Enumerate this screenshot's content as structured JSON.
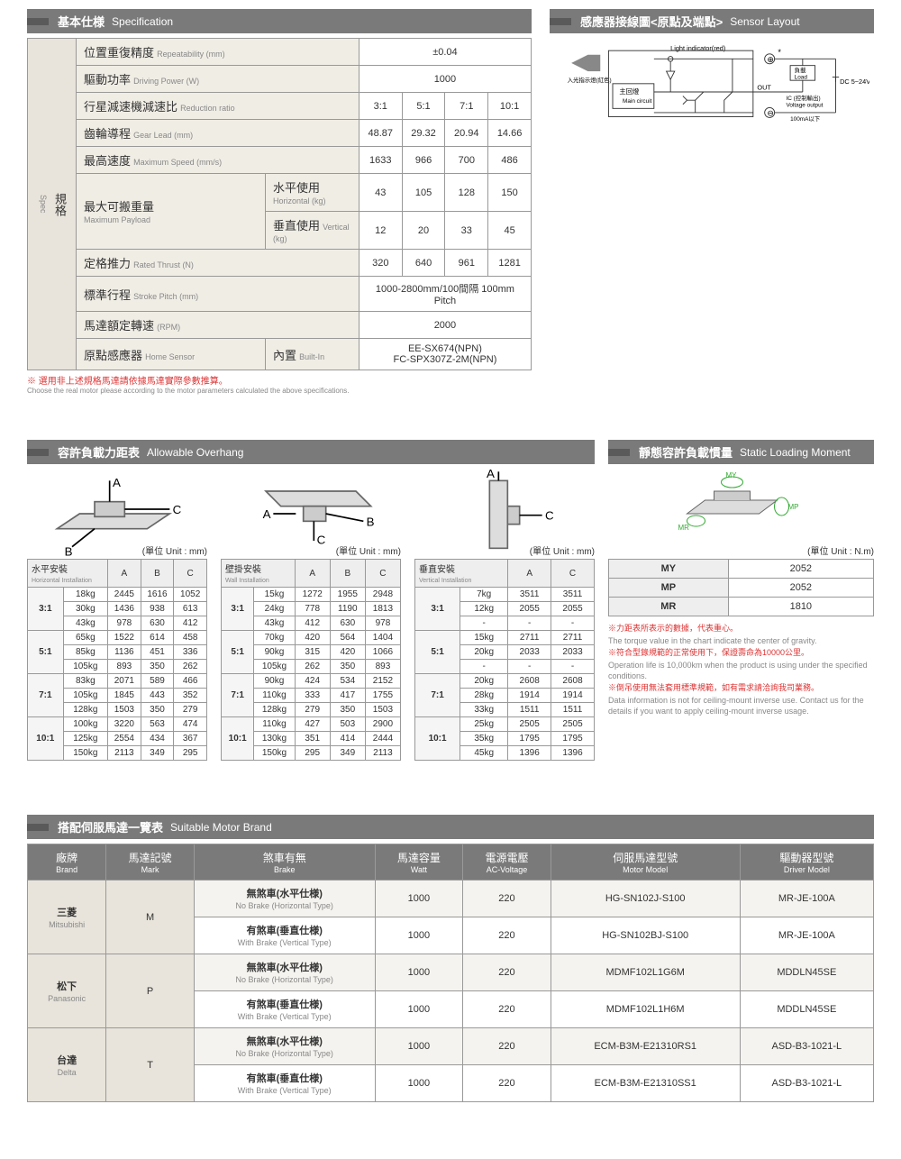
{
  "headers": {
    "spec": {
      "cn": "基本仕様",
      "en": "Specification"
    },
    "sensor": {
      "cn": "感應器接線圖<原點及端點>",
      "en": "Sensor Layout"
    },
    "overhang": {
      "cn": "容許負載力距表",
      "en": "Allowable Overhang"
    },
    "static": {
      "cn": "靜態容許負載慣量",
      "en": "Static Loading Moment"
    },
    "motor": {
      "cn": "搭配伺服馬達一覽表",
      "en": "Suitable Motor Brand"
    }
  },
  "spec": {
    "vert_cn": "規格",
    "vert_en": "Spec",
    "rows": {
      "repeat": {
        "cn": "位置重復精度",
        "en": "Repeatability (mm)",
        "val": "±0.04"
      },
      "power": {
        "cn": "驅動功率",
        "en": "Driving Power (W)",
        "val": "1000"
      },
      "ratio": {
        "cn": "行星減速機減速比",
        "en": "Reduction ratio",
        "vals": [
          "3:1",
          "5:1",
          "7:1",
          "10:1"
        ]
      },
      "lead": {
        "cn": "齒輪導程",
        "en": "Gear Lead (mm)",
        "vals": [
          "48.87",
          "29.32",
          "20.94",
          "14.66"
        ]
      },
      "speed": {
        "cn": "最高速度",
        "en": "Maximum Speed (mm/s)",
        "vals": [
          "1633",
          "966",
          "700",
          "486"
        ]
      },
      "payload": {
        "cn": "最大可搬重量",
        "en": "Maximum Payload"
      },
      "horiz": {
        "cn": "水平使用",
        "en": "Horizontal (kg)",
        "vals": [
          "43",
          "105",
          "128",
          "150"
        ]
      },
      "vert": {
        "cn": "垂直使用",
        "en": "Vertical (kg)",
        "vals": [
          "12",
          "20",
          "33",
          "45"
        ]
      },
      "thrust": {
        "cn": "定格推力",
        "en": "Rated Thrust (N)",
        "vals": [
          "320",
          "640",
          "961",
          "1281"
        ]
      },
      "stroke": {
        "cn": "標準行程",
        "en": "Stroke Pitch (mm)",
        "val": "1000-2800mm/100間隔 100mm Pitch"
      },
      "rpm": {
        "cn": "馬達額定轉速",
        "en": "(RPM)",
        "val": "2000"
      },
      "sensor": {
        "cn": "原點感應器",
        "en": "Home Sensor",
        "sub_cn": "內置",
        "sub_en": "Built-In",
        "val": "EE-SX674(NPN)\nFC-SPX307Z-2M(NPN)"
      }
    },
    "note_red": "※ 選用非上述規格馬達請依據馬達實際參數推算。",
    "note_sub": "Choose the real motor please according to the motor parameters calculated the above specifications."
  },
  "sensor_labels": {
    "light": "Light indicator(red)",
    "load_cn": "負載",
    "load_en": "Load",
    "main_cn": "主回燈",
    "main_en": "Main circuit",
    "in_cn": "入光指示燈(紅色)",
    "out": "OUT",
    "ic_cn": "IC (控制輸出)",
    "ic_en": "Voltage output",
    "ma": "100mA以下",
    "dc": "DC 5~24V",
    "plus": "⊕",
    "minus": "⊖",
    "star": "*"
  },
  "overhang": {
    "unit": "(單位 Unit : mm)",
    "tables": [
      {
        "title_cn": "水平安裝",
        "title_en": "Horizontal Installation",
        "cols": [
          "A",
          "B",
          "C"
        ],
        "groups": [
          {
            "r": "3:1",
            "rows": [
              [
                "18kg",
                "2445",
                "1616",
                "1052"
              ],
              [
                "30kg",
                "1436",
                "938",
                "613"
              ],
              [
                "43kg",
                "978",
                "630",
                "412"
              ]
            ]
          },
          {
            "r": "5:1",
            "rows": [
              [
                "65kg",
                "1522",
                "614",
                "458"
              ],
              [
                "85kg",
                "1136",
                "451",
                "336"
              ],
              [
                "105kg",
                "893",
                "350",
                "262"
              ]
            ]
          },
          {
            "r": "7:1",
            "rows": [
              [
                "83kg",
                "2071",
                "589",
                "466"
              ],
              [
                "105kg",
                "1845",
                "443",
                "352"
              ],
              [
                "128kg",
                "1503",
                "350",
                "279"
              ]
            ]
          },
          {
            "r": "10:1",
            "rows": [
              [
                "100kg",
                "3220",
                "563",
                "474"
              ],
              [
                "125kg",
                "2554",
                "434",
                "367"
              ],
              [
                "150kg",
                "2113",
                "349",
                "295"
              ]
            ]
          }
        ]
      },
      {
        "title_cn": "壁掛安裝",
        "title_en": "Wall Installation",
        "cols": [
          "A",
          "B",
          "C"
        ],
        "groups": [
          {
            "r": "3:1",
            "rows": [
              [
                "15kg",
                "1272",
                "1955",
                "2948"
              ],
              [
                "24kg",
                "778",
                "1190",
                "1813"
              ],
              [
                "43kg",
                "412",
                "630",
                "978"
              ]
            ]
          },
          {
            "r": "5:1",
            "rows": [
              [
                "70kg",
                "420",
                "564",
                "1404"
              ],
              [
                "90kg",
                "315",
                "420",
                "1066"
              ],
              [
                "105kg",
                "262",
                "350",
                "893"
              ]
            ]
          },
          {
            "r": "7:1",
            "rows": [
              [
                "90kg",
                "424",
                "534",
                "2152"
              ],
              [
                "110kg",
                "333",
                "417",
                "1755"
              ],
              [
                "128kg",
                "279",
                "350",
                "1503"
              ]
            ]
          },
          {
            "r": "10:1",
            "rows": [
              [
                "110kg",
                "427",
                "503",
                "2900"
              ],
              [
                "130kg",
                "351",
                "414",
                "2444"
              ],
              [
                "150kg",
                "295",
                "349",
                "2113"
              ]
            ]
          }
        ]
      },
      {
        "title_cn": "垂直安裝",
        "title_en": "Vertical Installation",
        "cols": [
          "A",
          "C"
        ],
        "groups": [
          {
            "r": "3:1",
            "rows": [
              [
                "7kg",
                "3511",
                "3511"
              ],
              [
                "12kg",
                "2055",
                "2055"
              ],
              [
                "-",
                "-",
                "-"
              ]
            ]
          },
          {
            "r": "5:1",
            "rows": [
              [
                "15kg",
                "2711",
                "2711"
              ],
              [
                "20kg",
                "2033",
                "2033"
              ],
              [
                "-",
                "-",
                "-"
              ]
            ]
          },
          {
            "r": "7:1",
            "rows": [
              [
                "20kg",
                "2608",
                "2608"
              ],
              [
                "28kg",
                "1914",
                "1914"
              ],
              [
                "33kg",
                "1511",
                "1511"
              ]
            ]
          },
          {
            "r": "10:1",
            "rows": [
              [
                "25kg",
                "2505",
                "2505"
              ],
              [
                "35kg",
                "1795",
                "1795"
              ],
              [
                "45kg",
                "1396",
                "1396"
              ]
            ]
          }
        ]
      }
    ]
  },
  "static": {
    "unit": "(單位 Unit : N.m)",
    "rows": [
      [
        "MY",
        "2052"
      ],
      [
        "MP",
        "2052"
      ],
      [
        "MR",
        "1810"
      ]
    ],
    "notes": [
      {
        "red": "※力距表所表示的數據，代表重心。",
        "sub": "The torque value in the chart indicate the center of gravity."
      },
      {
        "red": "※符合型錄規範的正常使用下，保證壽命為10000公里。",
        "sub": "Operation life is 10,000km when the product is using under the specified conditions."
      },
      {
        "red": "※倒吊使用無法套用標準規範，如有需求請洽詢我司業務。",
        "sub": "Data information is not for ceiling-mount inverse use. Contact us for the details if you want to apply ceiling-mount inverse usage."
      }
    ]
  },
  "motor": {
    "cols": [
      {
        "cn": "廠牌",
        "en": "Brand"
      },
      {
        "cn": "馬達記號",
        "en": "Mark"
      },
      {
        "cn": "煞車有無",
        "en": "Brake"
      },
      {
        "cn": "馬達容量",
        "en": "Watt"
      },
      {
        "cn": "電源電壓",
        "en": "AC-Voltage"
      },
      {
        "cn": "伺服馬達型號",
        "en": "Motor Model"
      },
      {
        "cn": "驅動器型號",
        "en": "Driver Model"
      }
    ],
    "brake_no": {
      "cn": "無煞車(水平仕様)",
      "en": "No Brake (Horizontal Type)"
    },
    "brake_yes": {
      "cn": "有煞車(垂直仕様)",
      "en": "With Brake (Vertical Type)"
    },
    "brands": [
      {
        "cn": "三菱",
        "en": "Mitsubishi",
        "mark": "M",
        "rows": [
          {
            "brake": "no",
            "watt": "1000",
            "ac": "220",
            "motor": "HG-SN102J-S100",
            "driver": "MR-JE-100A"
          },
          {
            "brake": "yes",
            "watt": "1000",
            "ac": "220",
            "motor": "HG-SN102BJ-S100",
            "driver": "MR-JE-100A"
          }
        ]
      },
      {
        "cn": "松下",
        "en": "Panasonic",
        "mark": "P",
        "rows": [
          {
            "brake": "no",
            "watt": "1000",
            "ac": "220",
            "motor": "MDMF102L1G6M",
            "driver": "MDDLN45SE"
          },
          {
            "brake": "yes",
            "watt": "1000",
            "ac": "220",
            "motor": "MDMF102L1H6M",
            "driver": "MDDLN45SE"
          }
        ]
      },
      {
        "cn": "台達",
        "en": "Delta",
        "mark": "T",
        "rows": [
          {
            "brake": "no",
            "watt": "1000",
            "ac": "220",
            "motor": "ECM-B3M-E21310RS1",
            "driver": "ASD-B3-1021-L"
          },
          {
            "brake": "yes",
            "watt": "1000",
            "ac": "220",
            "motor": "ECM-B3M-E21310SS1",
            "driver": "ASD-B3-1021-L"
          }
        ]
      }
    ]
  }
}
